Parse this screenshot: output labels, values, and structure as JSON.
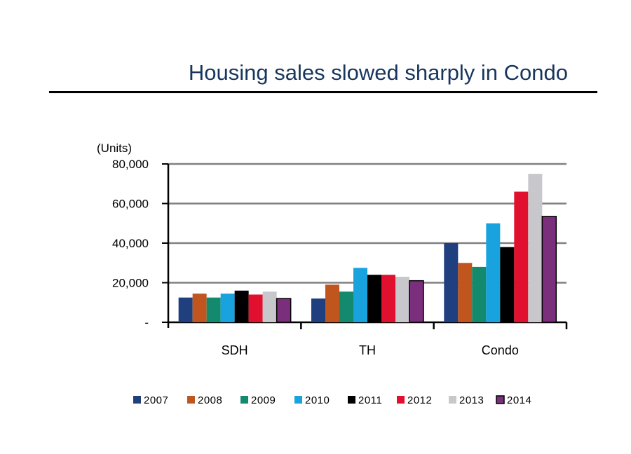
{
  "slide": {
    "title": "Housing sales slowed sharply in Condo"
  },
  "chart_data": {
    "type": "bar",
    "title": "Housing sales slowed sharply in Condo",
    "xlabel": "",
    "ylabel": "(Units)",
    "ylim": [
      0,
      80000
    ],
    "yticks": [
      {
        "value": 0,
        "label": "-"
      },
      {
        "value": 20000,
        "label": "20,000"
      },
      {
        "value": 40000,
        "label": "40,000"
      },
      {
        "value": 60000,
        "label": "60,000"
      },
      {
        "value": 80000,
        "label": "80,000"
      }
    ],
    "grid": true,
    "legend": "bottom",
    "categories": [
      "SDH",
      "TH",
      "Condo"
    ],
    "series": [
      {
        "name": "2007",
        "color": "#1f3f7f",
        "values": [
          12500,
          12000,
          40000
        ]
      },
      {
        "name": "2008",
        "color": "#c0561e",
        "values": [
          14500,
          19000,
          30000
        ]
      },
      {
        "name": "2009",
        "color": "#138a6d",
        "values": [
          12500,
          15500,
          28000
        ]
      },
      {
        "name": "2010",
        "color": "#19a3de",
        "values": [
          14500,
          27500,
          50000
        ]
      },
      {
        "name": "2011",
        "color": "#000000",
        "values": [
          16000,
          24000,
          38000
        ]
      },
      {
        "name": "2012",
        "color": "#e0102e",
        "values": [
          14000,
          24000,
          66000
        ]
      },
      {
        "name": "2013",
        "color": "#c8c8cc",
        "values": [
          15500,
          23000,
          75000
        ]
      },
      {
        "name": "2014",
        "color": "#7b2e7b",
        "values": [
          12000,
          21000,
          53500
        ]
      }
    ]
  }
}
